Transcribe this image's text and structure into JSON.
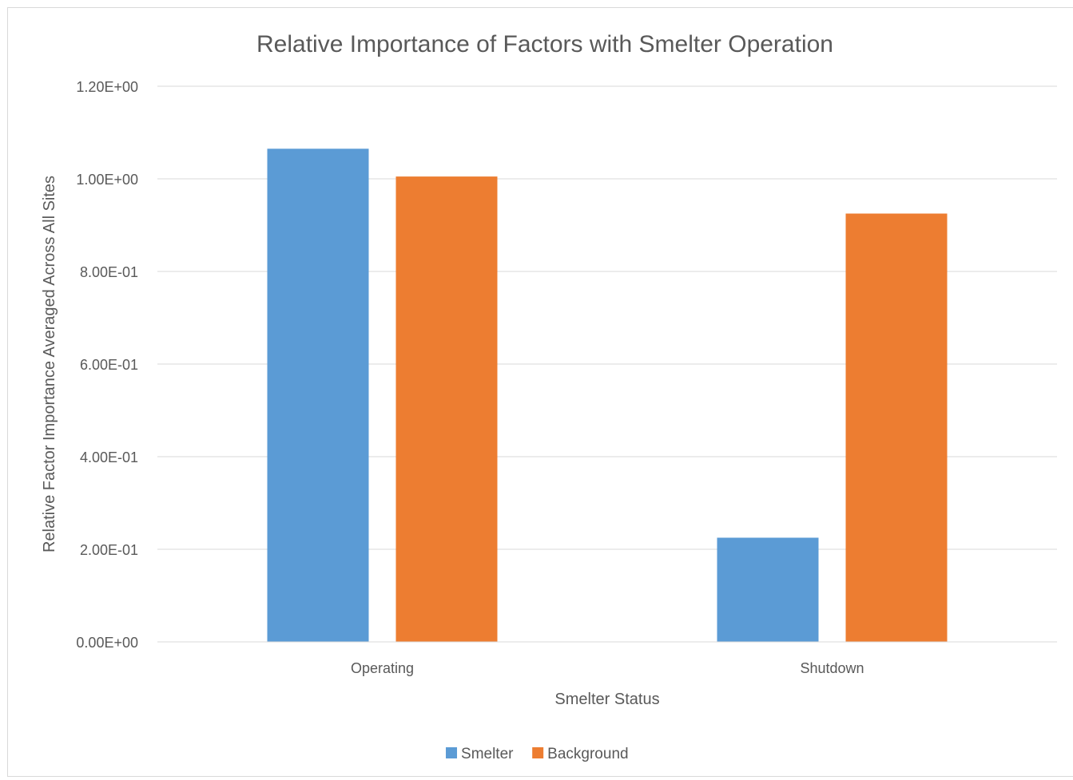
{
  "chart_data": {
    "type": "bar",
    "title": "Relative Importance of Factors with Smelter Operation",
    "xlabel": "Smelter Status",
    "ylabel": "Relative Factor Importance Averaged Across All Sites",
    "categories": [
      "Operating",
      "Shutdown"
    ],
    "series": [
      {
        "name": "Smelter",
        "values": [
          1.065,
          0.225
        ],
        "color": "#5b9bd5"
      },
      {
        "name": "Background",
        "values": [
          1.005,
          0.925
        ],
        "color": "#ed7d31"
      }
    ],
    "ylim": [
      0,
      1.2
    ],
    "yticks": [
      0,
      0.2,
      0.4,
      0.6,
      0.8,
      1.0,
      1.2
    ],
    "ytick_labels": [
      "0.00E+00",
      "2.00E-01",
      "4.00E-01",
      "6.00E-01",
      "8.00E-01",
      "1.00E+00",
      "1.20E+00"
    ],
    "grid": true,
    "legend_position": "bottom"
  }
}
